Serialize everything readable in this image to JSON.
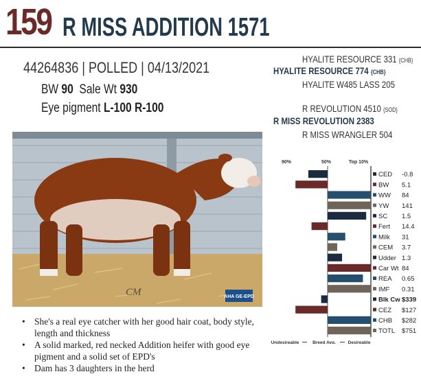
{
  "header": {
    "lot_number": "159",
    "title": "R MISS ADDITION 1571"
  },
  "registration": {
    "line": "44264836 | POLLED | 04/13/2021"
  },
  "stats": {
    "bw_label": "BW",
    "bw_value": "90",
    "sale_wt_label": "Sale Wt",
    "sale_wt_value": "930",
    "eye_label": "Eye pigment",
    "eye_value": "L-100  R-100"
  },
  "pedigree": {
    "sire_sire": "HYALITE RESOURCE 331",
    "sire_sire_tag": "{CHB}",
    "sire": "HYALITE RESOURCE 774",
    "sire_tag": "{CHB}",
    "sire_dam": "HYALITE W485 LASS 205",
    "dam_sire": "R REVOLUTION 4510",
    "dam_sire_tag": "{SOD}",
    "dam": "R MISS REVOLUTION 2383",
    "dam_dam": "R MISS WRANGLER 504"
  },
  "photo": {
    "watermark": "CM",
    "badge": "AHA GE-EPD"
  },
  "bullets": [
    "She's a real eye catcher with her good hair coat, body style, length and thickness",
    "A solid marked, red necked Addition heifer with good eye pigment and a solid set of EPD's",
    "Dam has 3 daughters in the herd"
  ],
  "chart_data": {
    "type": "bar",
    "orientation": "horizontal",
    "scale_labels": [
      "90%",
      "50%",
      "Top 10%"
    ],
    "footer_labels": [
      "Undesireable",
      "Breed Avg.",
      "Desireable"
    ],
    "colors": {
      "navy": "#1c2b3d",
      "maroon": "#6b2a2a",
      "steel": "#264f6e",
      "taupe": "#6f6459"
    },
    "categories": [
      "CED",
      "BW",
      "WW",
      "YW",
      "SC",
      "Fert",
      "Milk",
      "CEM",
      "Udder",
      "Car Wt",
      "REA",
      "IMF",
      "Blk Cw",
      "CEZ",
      "CHB",
      "TOTL"
    ],
    "values": [
      "-0.8",
      "5.1",
      "84",
      "141",
      "1.5",
      "14.4",
      "31",
      "3.7",
      "1.3",
      "84",
      "0.65",
      "0.31",
      "$339",
      "$127",
      "$282",
      "$751"
    ],
    "bold": [
      false,
      false,
      false,
      false,
      false,
      false,
      false,
      false,
      false,
      false,
      false,
      false,
      true,
      false,
      false,
      false
    ],
    "relative_score": [
      -0.6,
      -1.0,
      1.45,
      1.45,
      1.2,
      -0.5,
      0.55,
      0.3,
      0.45,
      1.35,
      1.1,
      1.35,
      -0.2,
      -1.0,
      1.45,
      1.45
    ],
    "bar_colors": [
      "navy",
      "maroon",
      "steel",
      "taupe",
      "navy",
      "maroon",
      "steel",
      "taupe",
      "navy",
      "maroon",
      "steel",
      "taupe",
      "navy",
      "maroon",
      "steel",
      "taupe"
    ]
  }
}
